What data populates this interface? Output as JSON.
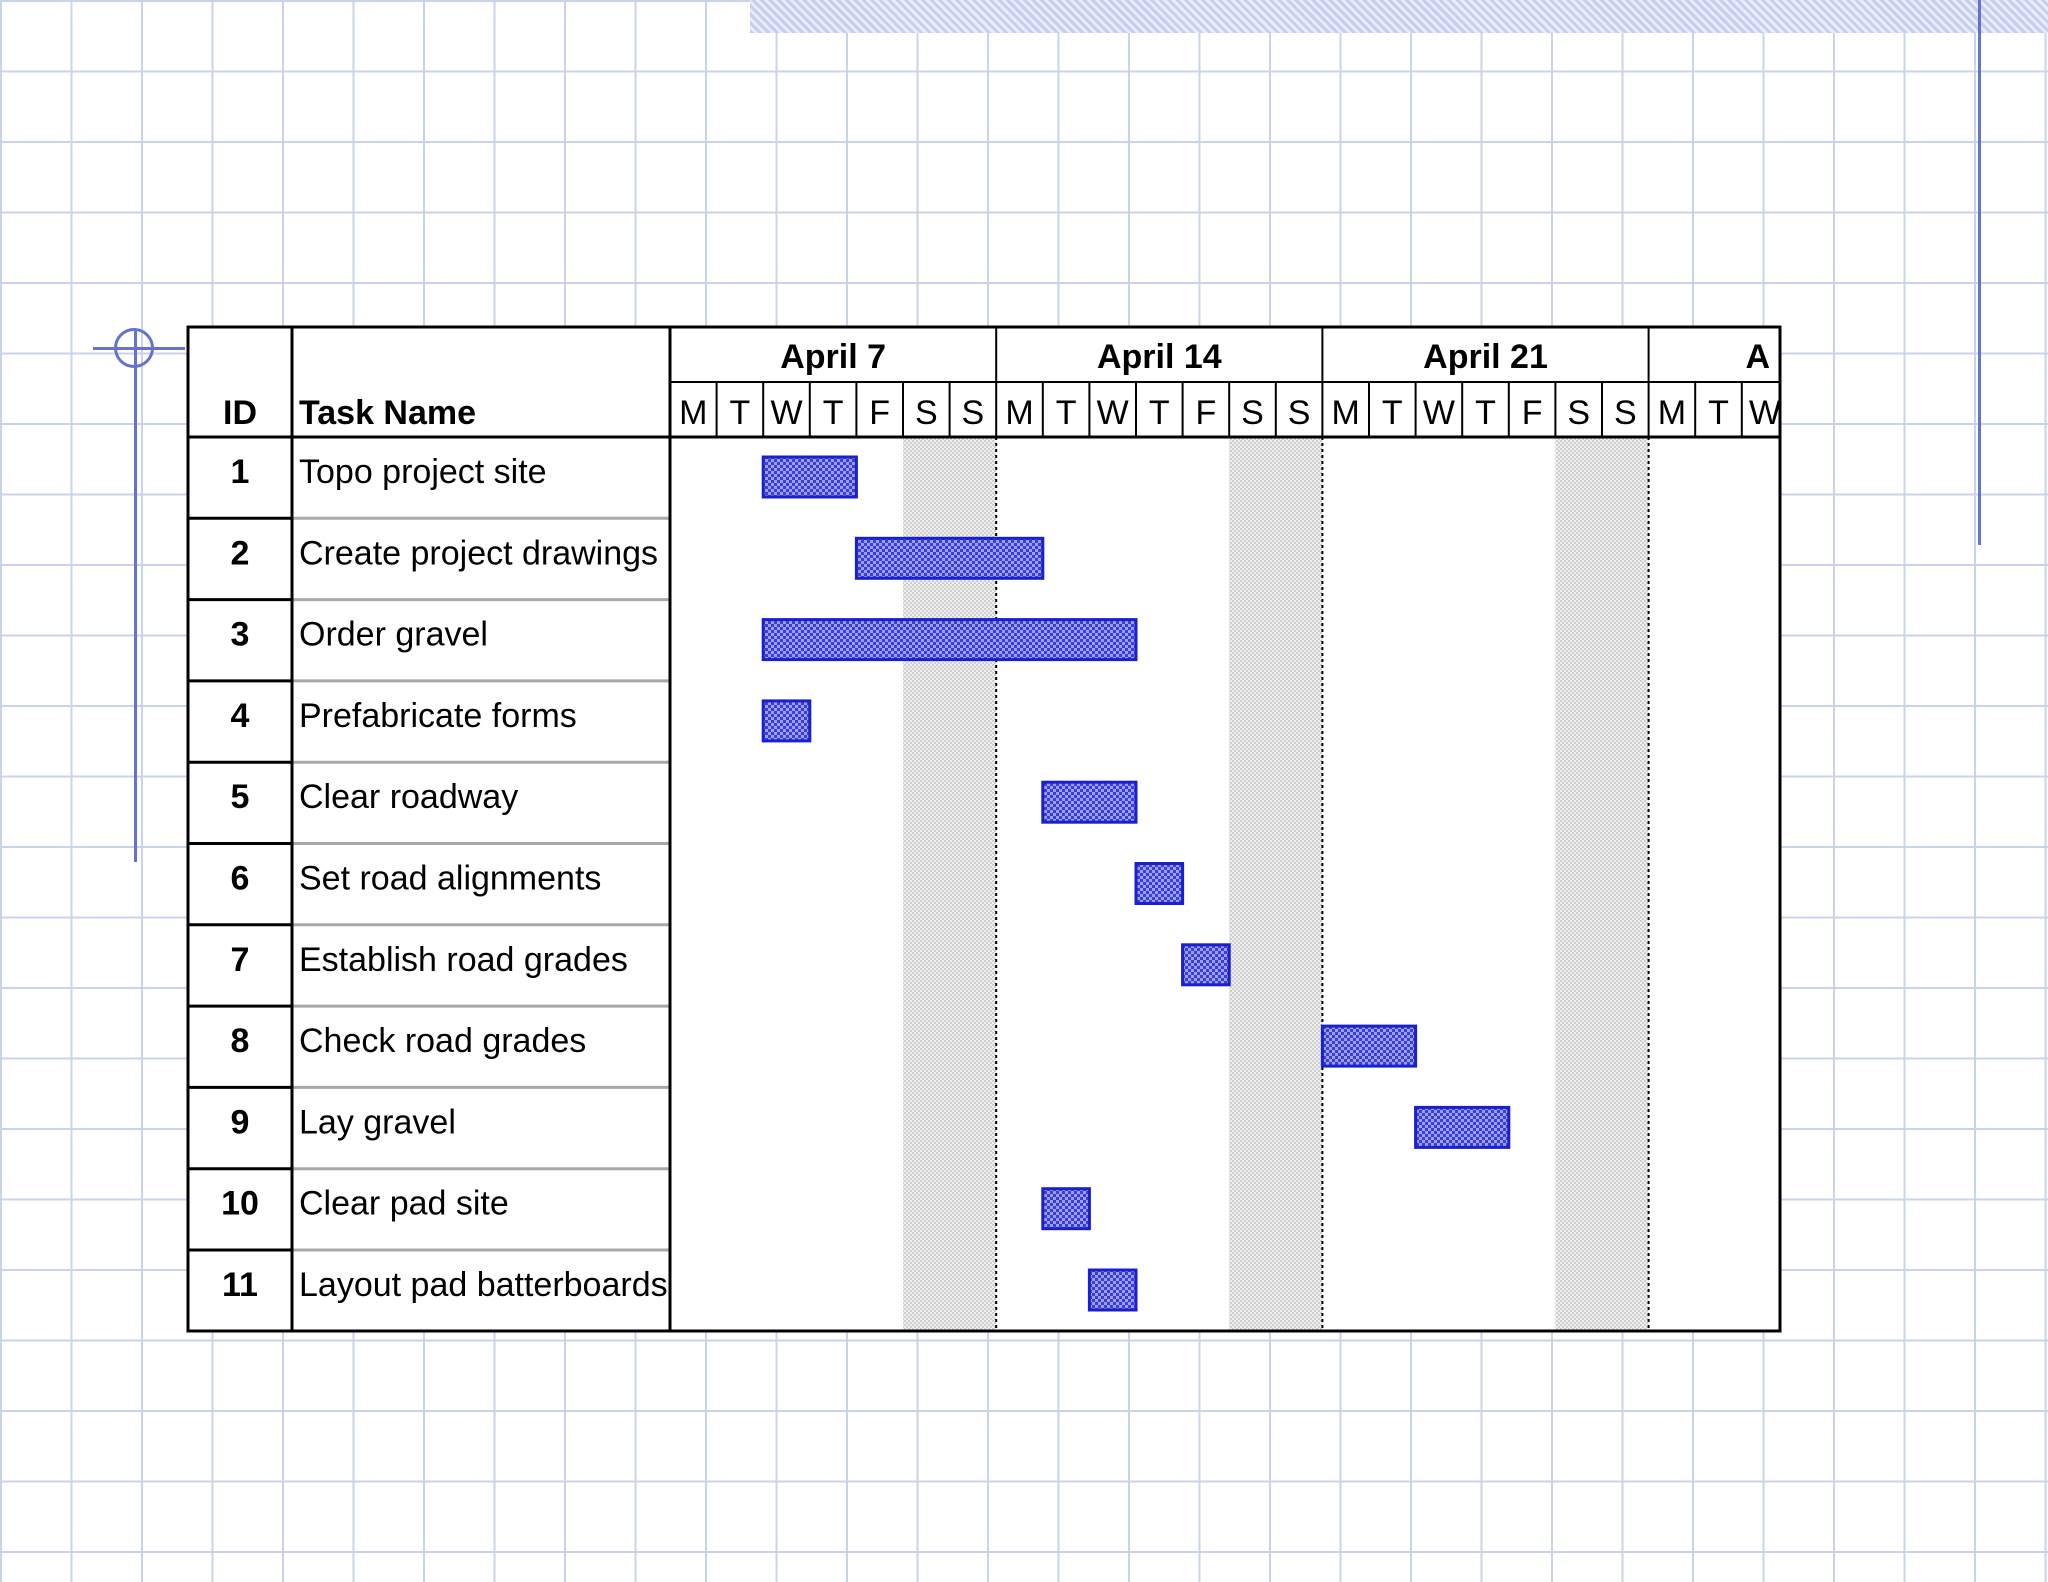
{
  "chart_data": {
    "type": "gantt",
    "columns": {
      "id": "ID",
      "task": "Task Name"
    },
    "weeks": [
      "April 7",
      "April 14",
      "April 21",
      "A"
    ],
    "days": [
      "M",
      "T",
      "W",
      "T",
      "F",
      "S",
      "S",
      "M",
      "T",
      "W",
      "T",
      "F",
      "S",
      "S",
      "M",
      "T",
      "W",
      "T",
      "F",
      "S",
      "S",
      "M",
      "T",
      "W"
    ],
    "weekend_day_indices": [
      5,
      6,
      12,
      13,
      19,
      20
    ],
    "tasks": [
      {
        "id": "1",
        "name": "Topo project site",
        "start": 2,
        "duration": 2
      },
      {
        "id": "2",
        "name": "Create project drawings",
        "start": 4,
        "duration": 4
      },
      {
        "id": "3",
        "name": "Order gravel",
        "start": 2,
        "duration": 8
      },
      {
        "id": "4",
        "name": "Prefabricate forms",
        "start": 2,
        "duration": 1
      },
      {
        "id": "5",
        "name": "Clear roadway",
        "start": 8,
        "duration": 2
      },
      {
        "id": "6",
        "name": "Set road alignments",
        "start": 10,
        "duration": 1
      },
      {
        "id": "7",
        "name": "Establish road grades",
        "start": 11,
        "duration": 1
      },
      {
        "id": "8",
        "name": "Check road grades",
        "start": 14,
        "duration": 2
      },
      {
        "id": "9",
        "name": "Lay gravel",
        "start": 16,
        "duration": 2
      },
      {
        "id": "10",
        "name": "Clear pad site",
        "start": 8,
        "duration": 1
      },
      {
        "id": "11",
        "name": "Layout pad batterboards",
        "start": 9,
        "duration": 1
      }
    ],
    "colors": {
      "bar_fill": "#3b3fd6",
      "bar_stroke": "#1a1fd0",
      "weekend": "#e0e0e0",
      "grid": "#000000"
    }
  }
}
